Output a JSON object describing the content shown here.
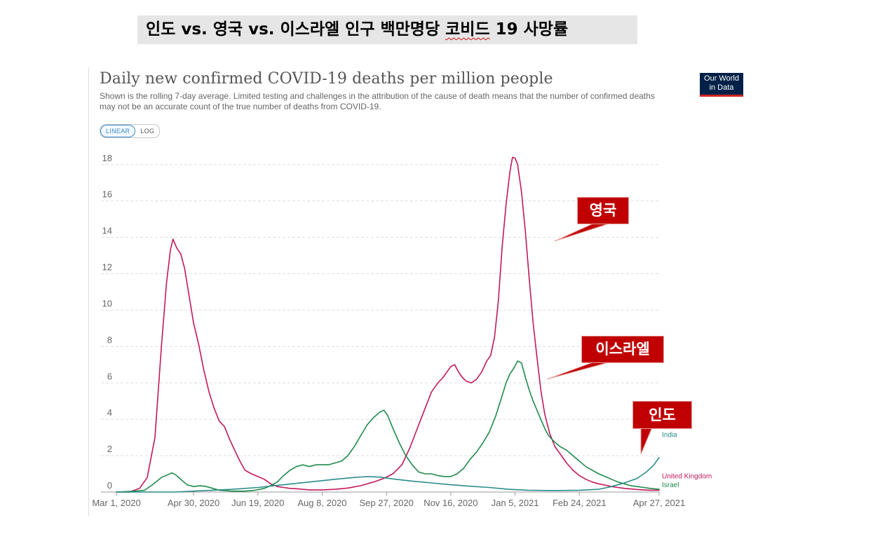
{
  "slide": {
    "title_prefix": "인도 vs. 영국 vs. 이스라엘 인구 백만명당 ",
    "title_underlined": "코비드",
    "title_suffix": " 19 사망률"
  },
  "chart_header": {
    "title": "Daily new confirmed COVID-19 deaths per million people",
    "subtitle": "Shown is the rolling 7-day average. Limited testing and challenges in the attribution of the cause of death means that the number of confirmed deaths may not be an accurate count of the true number of deaths from COVID-19.",
    "logo_line1": "Our World",
    "logo_line2": "in Data",
    "toggle_linear": "LINEAR",
    "toggle_log": "LOG"
  },
  "callouts": {
    "uk": "영국",
    "israel": "이스라엘",
    "india": "인도"
  },
  "chart_data": {
    "type": "line",
    "title": "Daily new confirmed COVID-19 deaths per million people",
    "xlabel": "",
    "ylabel": "",
    "ylim": [
      0,
      18.8
    ],
    "y_ticks": [
      0,
      2,
      4,
      6,
      8,
      10,
      12,
      14,
      16,
      18
    ],
    "x_range_days": [
      0,
      422
    ],
    "x_ticks": [
      {
        "day": 0,
        "label": "Mar 1, 2020"
      },
      {
        "day": 60,
        "label": "Apr 30, 2020"
      },
      {
        "day": 110,
        "label": "Jun 19, 2020"
      },
      {
        "day": 160,
        "label": "Aug 8, 2020"
      },
      {
        "day": 210,
        "label": "Sep 27, 2020"
      },
      {
        "day": 260,
        "label": "Nov 16, 2020"
      },
      {
        "day": 310,
        "label": "Jan 5, 2021"
      },
      {
        "day": 360,
        "label": "Feb 24, 2021"
      },
      {
        "day": 422,
        "label": "Apr 27, 2021"
      }
    ],
    "series": [
      {
        "name": "United Kingdom",
        "color": "#c2185b",
        "points": [
          [
            0,
            0
          ],
          [
            10,
            0
          ],
          [
            18,
            0.2
          ],
          [
            24,
            0.8
          ],
          [
            30,
            3
          ],
          [
            35,
            8
          ],
          [
            39,
            11.5
          ],
          [
            42,
            13.3
          ],
          [
            44,
            13.9
          ],
          [
            47,
            13.4
          ],
          [
            50,
            13.1
          ],
          [
            53,
            12.3
          ],
          [
            57,
            10.6
          ],
          [
            60,
            9.3
          ],
          [
            64,
            8.1
          ],
          [
            68,
            6.7
          ],
          [
            72,
            5.5
          ],
          [
            76,
            4.6
          ],
          [
            80,
            3.9
          ],
          [
            84,
            3.6
          ],
          [
            88,
            2.9
          ],
          [
            92,
            2.3
          ],
          [
            96,
            1.7
          ],
          [
            100,
            1.2
          ],
          [
            105,
            1.0
          ],
          [
            110,
            0.85
          ],
          [
            115,
            0.7
          ],
          [
            120,
            0.45
          ],
          [
            125,
            0.3
          ],
          [
            130,
            0.25
          ],
          [
            135,
            0.2
          ],
          [
            140,
            0.18
          ],
          [
            150,
            0.12
          ],
          [
            160,
            0.12
          ],
          [
            170,
            0.15
          ],
          [
            180,
            0.22
          ],
          [
            190,
            0.35
          ],
          [
            200,
            0.55
          ],
          [
            208,
            0.75
          ],
          [
            215,
            1.0
          ],
          [
            222,
            1.5
          ],
          [
            228,
            2.4
          ],
          [
            234,
            3.5
          ],
          [
            240,
            4.6
          ],
          [
            245,
            5.5
          ],
          [
            250,
            6.0
          ],
          [
            254,
            6.3
          ],
          [
            257,
            6.6
          ],
          [
            260,
            6.9
          ],
          [
            263,
            7.0
          ],
          [
            266,
            6.6
          ],
          [
            269,
            6.3
          ],
          [
            272,
            6.1
          ],
          [
            276,
            6.0
          ],
          [
            280,
            6.2
          ],
          [
            284,
            6.6
          ],
          [
            288,
            7.2
          ],
          [
            291,
            7.5
          ],
          [
            294,
            8.5
          ],
          [
            297,
            10.5
          ],
          [
            300,
            13.5
          ],
          [
            303,
            15.8
          ],
          [
            306,
            17.6
          ],
          [
            308,
            18.4
          ],
          [
            310,
            18.35
          ],
          [
            312,
            18.0
          ],
          [
            315,
            16.5
          ],
          [
            318,
            14.3
          ],
          [
            321,
            11.7
          ],
          [
            324,
            9.3
          ],
          [
            327,
            7.4
          ],
          [
            330,
            5.6
          ],
          [
            333,
            4.3
          ],
          [
            337,
            3.2
          ],
          [
            341,
            2.5
          ],
          [
            345,
            2.1
          ],
          [
            350,
            1.6
          ],
          [
            355,
            1.2
          ],
          [
            360,
            0.9
          ],
          [
            365,
            0.7
          ],
          [
            370,
            0.55
          ],
          [
            375,
            0.45
          ],
          [
            380,
            0.38
          ],
          [
            385,
            0.3
          ],
          [
            390,
            0.25
          ],
          [
            395,
            0.2
          ],
          [
            400,
            0.17
          ],
          [
            405,
            0.14
          ],
          [
            410,
            0.12
          ],
          [
            415,
            0.1
          ],
          [
            422,
            0.1
          ]
        ]
      },
      {
        "name": "Israel",
        "color": "#1e8a4c",
        "points": [
          [
            0,
            0
          ],
          [
            15,
            0.05
          ],
          [
            22,
            0.1
          ],
          [
            28,
            0.4
          ],
          [
            35,
            0.8
          ],
          [
            40,
            0.95
          ],
          [
            43,
            1.05
          ],
          [
            46,
            0.95
          ],
          [
            50,
            0.7
          ],
          [
            55,
            0.4
          ],
          [
            60,
            0.3
          ],
          [
            65,
            0.35
          ],
          [
            70,
            0.3
          ],
          [
            75,
            0.2
          ],
          [
            80,
            0.1
          ],
          [
            90,
            0.05
          ],
          [
            100,
            0.05
          ],
          [
            108,
            0.1
          ],
          [
            115,
            0.2
          ],
          [
            120,
            0.35
          ],
          [
            125,
            0.55
          ],
          [
            130,
            0.9
          ],
          [
            135,
            1.2
          ],
          [
            140,
            1.4
          ],
          [
            145,
            1.5
          ],
          [
            150,
            1.4
          ],
          [
            155,
            1.5
          ],
          [
            160,
            1.5
          ],
          [
            165,
            1.5
          ],
          [
            170,
            1.6
          ],
          [
            175,
            1.7
          ],
          [
            180,
            2.0
          ],
          [
            185,
            2.5
          ],
          [
            190,
            3.1
          ],
          [
            195,
            3.7
          ],
          [
            200,
            4.1
          ],
          [
            205,
            4.4
          ],
          [
            208,
            4.5
          ],
          [
            211,
            4.2
          ],
          [
            215,
            3.5
          ],
          [
            220,
            2.7
          ],
          [
            225,
            2.0
          ],
          [
            230,
            1.5
          ],
          [
            235,
            1.1
          ],
          [
            240,
            1.0
          ],
          [
            245,
            1.0
          ],
          [
            250,
            0.9
          ],
          [
            255,
            0.85
          ],
          [
            260,
            0.85
          ],
          [
            265,
            1.0
          ],
          [
            270,
            1.3
          ],
          [
            275,
            1.8
          ],
          [
            280,
            2.2
          ],
          [
            285,
            2.7
          ],
          [
            290,
            3.3
          ],
          [
            295,
            4.2
          ],
          [
            300,
            5.3
          ],
          [
            303,
            6.0
          ],
          [
            306,
            6.5
          ],
          [
            309,
            6.8
          ],
          [
            312,
            7.2
          ],
          [
            315,
            7.1
          ],
          [
            318,
            6.3
          ],
          [
            321,
            5.6
          ],
          [
            324,
            5.0
          ],
          [
            327,
            4.5
          ],
          [
            330,
            4.0
          ],
          [
            333,
            3.5
          ],
          [
            336,
            3.1
          ],
          [
            340,
            2.8
          ],
          [
            345,
            2.5
          ],
          [
            350,
            2.3
          ],
          [
            355,
            2.0
          ],
          [
            360,
            1.7
          ],
          [
            365,
            1.4
          ],
          [
            370,
            1.2
          ],
          [
            375,
            1.0
          ],
          [
            380,
            0.85
          ],
          [
            385,
            0.7
          ],
          [
            390,
            0.55
          ],
          [
            395,
            0.45
          ],
          [
            400,
            0.35
          ],
          [
            405,
            0.3
          ],
          [
            410,
            0.25
          ],
          [
            415,
            0.2
          ],
          [
            422,
            0.15
          ]
        ]
      },
      {
        "name": "India",
        "color": "#2a8c8a",
        "points": [
          [
            0,
            0
          ],
          [
            30,
            0
          ],
          [
            45,
            0
          ],
          [
            60,
            0.05
          ],
          [
            75,
            0.1
          ],
          [
            90,
            0.15
          ],
          [
            110,
            0.25
          ],
          [
            130,
            0.4
          ],
          [
            150,
            0.55
          ],
          [
            170,
            0.7
          ],
          [
            185,
            0.8
          ],
          [
            195,
            0.85
          ],
          [
            205,
            0.82
          ],
          [
            215,
            0.72
          ],
          [
            230,
            0.6
          ],
          [
            245,
            0.5
          ],
          [
            260,
            0.4
          ],
          [
            275,
            0.32
          ],
          [
            290,
            0.25
          ],
          [
            305,
            0.15
          ],
          [
            320,
            0.1
          ],
          [
            340,
            0.08
          ],
          [
            360,
            0.1
          ],
          [
            375,
            0.15
          ],
          [
            385,
            0.3
          ],
          [
            395,
            0.5
          ],
          [
            405,
            0.75
          ],
          [
            412,
            1.1
          ],
          [
            418,
            1.5
          ],
          [
            422,
            1.9
          ]
        ]
      }
    ],
    "series_labels": {
      "india": "India",
      "uk": "United Kingdom",
      "israel": "Israel"
    }
  }
}
